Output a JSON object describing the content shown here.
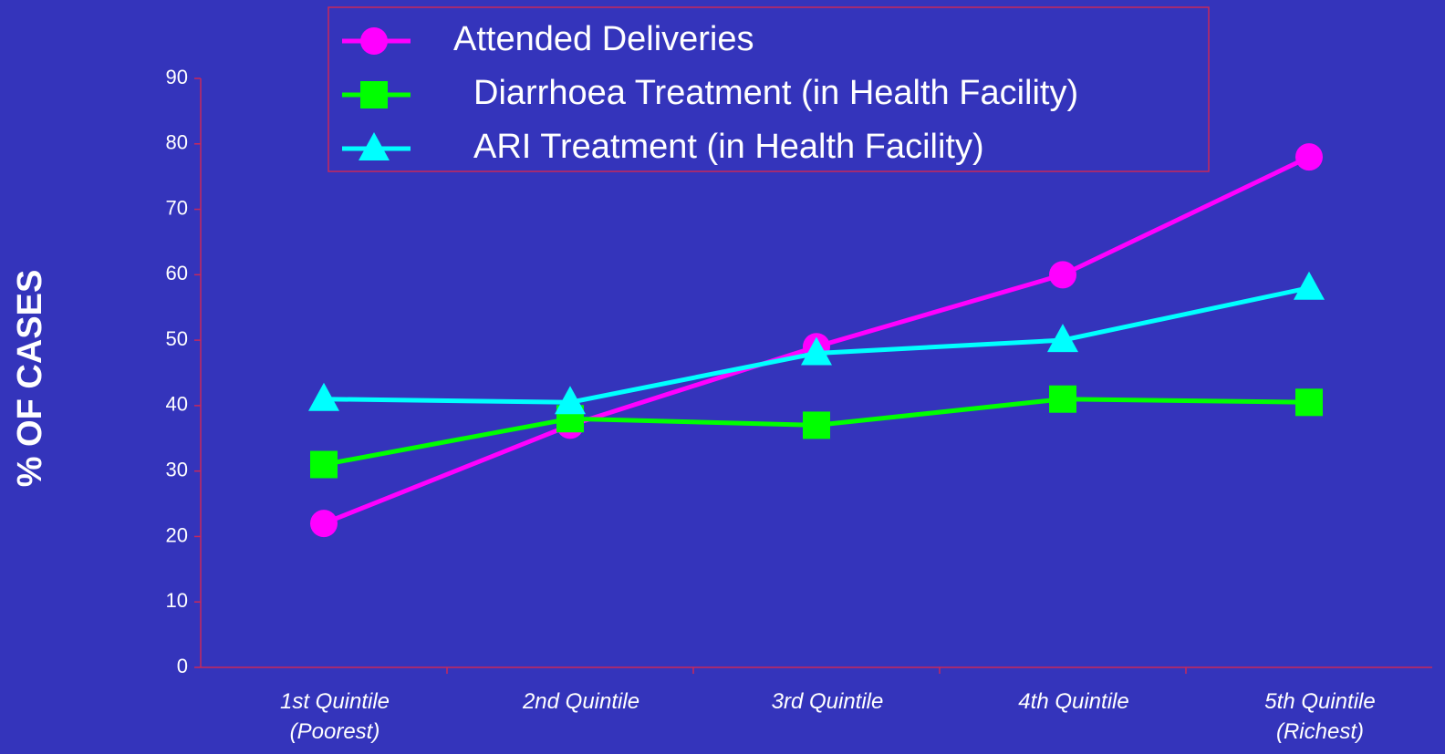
{
  "chart_data": {
    "type": "line",
    "categories": [
      "1st Quintile\n(Poorest)",
      "2nd Quintile",
      "3rd Quintile",
      "4th Quintile",
      "5th Quintile\n(Richest)"
    ],
    "y_label": "% OF CASES",
    "ylim": [
      0,
      90
    ],
    "yticks": [
      0,
      10,
      20,
      30,
      40,
      50,
      60,
      70,
      80,
      90
    ],
    "legend": "top",
    "series": [
      {
        "name": "Attended Deliveries",
        "color": "#ff00ff",
        "marker": "circle",
        "values": [
          22,
          37,
          49,
          60,
          78
        ]
      },
      {
        "name": "Diarrhoea Treatment (in Health Facility)",
        "color": "#00ff00",
        "marker": "square",
        "values": [
          31,
          38,
          37,
          41,
          40.5
        ]
      },
      {
        "name": "ARI Treatment (in Health Facility)",
        "color": "#00ffff",
        "marker": "triangle",
        "values": [
          41,
          40.5,
          48,
          50,
          58
        ]
      }
    ]
  }
}
